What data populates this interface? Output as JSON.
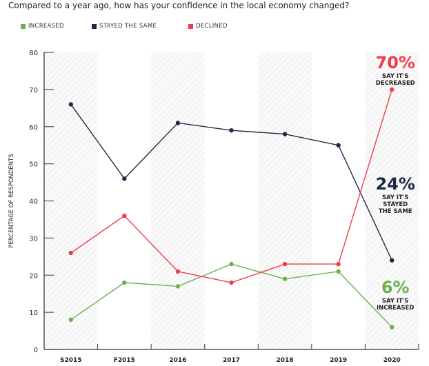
{
  "chart_data": {
    "type": "line",
    "title": "Compared to a year ago, how has your confidence in the local economy changed?",
    "ylabel": "PERCENTAGE OF RESPONDENTS",
    "xlabel": "",
    "categories": [
      "S2015",
      "F2015",
      "2016",
      "2017",
      "2018",
      "2019",
      "2020"
    ],
    "ylim": [
      0,
      80
    ],
    "yticks": [
      0,
      10,
      20,
      30,
      40,
      50,
      60,
      70,
      80
    ],
    "grid": false,
    "legend_placement": "top-left",
    "series": [
      {
        "name": "INCREASED",
        "color": "#6ab04c",
        "values": [
          8,
          18,
          17,
          23,
          19,
          21,
          6
        ]
      },
      {
        "name": "STAYED THE SAME",
        "color": "#1e2a45",
        "values": [
          66,
          46,
          61,
          59,
          58,
          55,
          24
        ]
      },
      {
        "name": "DECLINED",
        "color": "#ef3d4c",
        "values": [
          26,
          36,
          21,
          18,
          23,
          23,
          70
        ]
      }
    ],
    "annotations": [
      {
        "big": "70%",
        "lines": [
          "SAY IT'S",
          "DECREASED"
        ],
        "color": "#ef3d4c",
        "series": "DECLINED"
      },
      {
        "big": "24%",
        "lines": [
          "SAY IT'S",
          "STAYED",
          "THE SAME"
        ],
        "color": "#1e2a45",
        "series": "STAYED THE SAME"
      },
      {
        "big": "6%",
        "lines": [
          "SAY IT'S",
          "INCREASED"
        ],
        "color": "#6ab04c",
        "series": "INCREASED"
      }
    ]
  }
}
